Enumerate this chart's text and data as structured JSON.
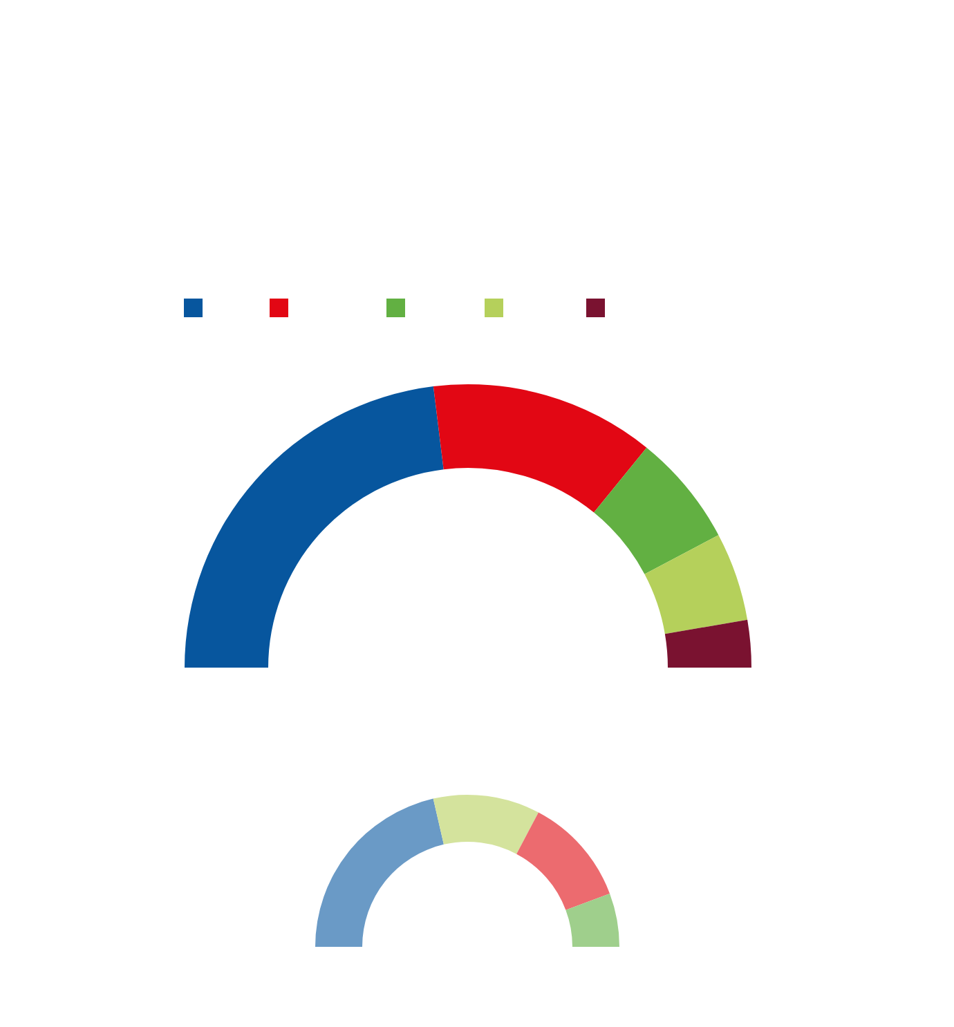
{
  "chart_data": [
    {
      "type": "donut",
      "categories": [
        null,
        null,
        null,
        null,
        null
      ],
      "values": [
        46.1,
        25.6,
        12.8,
        10.1,
        5.4
      ],
      "colors": [
        "#07569e",
        "#e20714",
        "#62b042",
        "#b5d05b",
        "#7a1230"
      ]
    },
    {
      "type": "donut",
      "categories": [
        null,
        null,
        null,
        null
      ],
      "values": [
        42.8,
        22.7,
        23.1,
        11.4
      ],
      "colors": [
        "#6a9ac6",
        "#d4e39d",
        "#ec6b6f",
        "#9fcf8c"
      ]
    }
  ]
}
